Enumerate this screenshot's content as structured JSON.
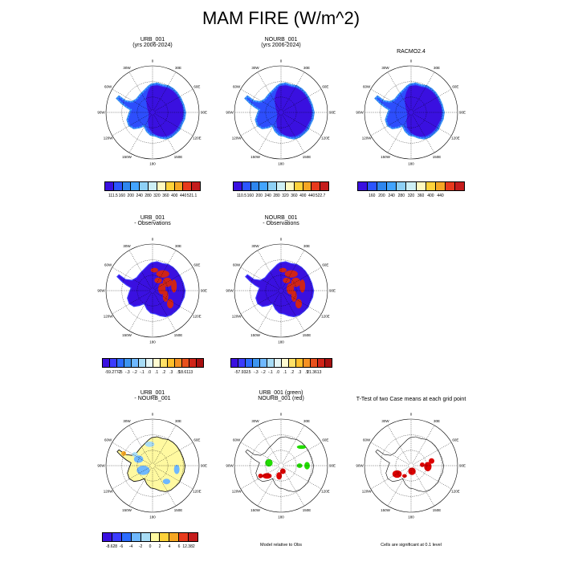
{
  "title": "MAM FIRE (W/m^2)",
  "lon_labels": [
    "0",
    "30E",
    "60E",
    "90E",
    "120E",
    "150E",
    "180",
    "150W",
    "120W",
    "90W",
    "60W",
    "30W"
  ],
  "panels": [
    {
      "id": "urb",
      "title_lines": [
        "URB_001",
        "(yrs 2006-2024)"
      ],
      "kind": "abs",
      "colorbar": {
        "colors": [
          "#3a10e0",
          "#2c55ff",
          "#2f86ee",
          "#43a4ff",
          "#8ed0f5",
          "#cdeff5",
          "#fff9c0",
          "#ffd23a",
          "#f5a623",
          "#e83a1c",
          "#c51c1c"
        ],
        "labels": [
          "111.5",
          "160",
          "200",
          "240",
          "280",
          "320",
          "360",
          "400",
          "440",
          "521.1"
        ]
      }
    },
    {
      "id": "nourb",
      "title_lines": [
        "NOURB_001",
        "(yrs 2006-2024)"
      ],
      "kind": "abs",
      "colorbar": {
        "colors": [
          "#3a10e0",
          "#2c55ff",
          "#2f86ee",
          "#43a4ff",
          "#8ed0f5",
          "#cdeff5",
          "#fff9c0",
          "#ffd23a",
          "#f5a623",
          "#e83a1c",
          "#c51c1c"
        ],
        "labels": [
          "110.5",
          "160",
          "200",
          "240",
          "280",
          "320",
          "360",
          "400",
          "440",
          "522.7"
        ]
      }
    },
    {
      "id": "racmo",
      "title_lines": [
        "RACMO2.4"
      ],
      "kind": "abs",
      "colorbar": {
        "colors": [
          "#3a10e0",
          "#2c55ff",
          "#2f86ee",
          "#43a4ff",
          "#8ed0f5",
          "#cdeff5",
          "#fff9c0",
          "#ffd23a",
          "#f5a623",
          "#e83a1c",
          "#c51c1c"
        ],
        "labels": [
          "160",
          "200",
          "240",
          "280",
          "320",
          "360",
          "400",
          "440"
        ]
      }
    },
    {
      "id": "urb-obs",
      "title_lines": [
        "URB_001",
        "- Observations"
      ],
      "kind": "diff",
      "colorbar": {
        "colors": [
          "#3a10e0",
          "#3b3bff",
          "#2c6cff",
          "#3d95f0",
          "#6fb8ff",
          "#a8dcf5",
          "#e4f5f5",
          "#fffbd0",
          "#ffe066",
          "#ffbf2a",
          "#f59123",
          "#e8501c",
          "#d02418",
          "#a81010"
        ],
        "labels": [
          "-59.2772",
          "-.5",
          "-.3",
          "-.2",
          "-.1",
          ".0",
          ".1",
          ".2",
          ".3",
          ".5",
          "18.6113"
        ]
      }
    },
    {
      "id": "nourb-obs",
      "title_lines": [
        "NOURB_001",
        "- Observations"
      ],
      "kind": "diff",
      "colorbar": {
        "colors": [
          "#3a10e0",
          "#3b3bff",
          "#2c6cff",
          "#3d95f0",
          "#6fb8ff",
          "#a8dcf5",
          "#e4f5f5",
          "#fffbd0",
          "#ffe066",
          "#ffbf2a",
          "#f59123",
          "#e8501c",
          "#d02418",
          "#a81010"
        ],
        "labels": [
          "-57.932",
          "-.5",
          "-.3",
          "-.2",
          "-.1",
          ".0",
          ".1",
          ".2",
          ".3",
          ".5",
          "21.3613"
        ]
      }
    },
    {
      "id": "urb-nourb",
      "title_lines": [
        "URB_001",
        "- NOURB_001"
      ],
      "kind": "modeldiff",
      "colorbar": {
        "colors": [
          "#3a10e0",
          "#3b3bff",
          "#2c6cff",
          "#6fb8ff",
          "#a8dcf5",
          "#fff9a0",
          "#ffd23a",
          "#f5a623",
          "#e83a1c",
          "#c51c1c"
        ],
        "labels": [
          "-8.628",
          "-6",
          "-4",
          "-2",
          "0",
          "2",
          "4",
          "6",
          "12.382"
        ]
      }
    },
    {
      "id": "model-rel",
      "title_lines": [
        "URB_001 (green)",
        "NOURB_001 (red)"
      ],
      "kind": "relobs",
      "footnote": "Model relative to Obs"
    },
    {
      "id": "ttest",
      "title_lines": [
        "T-Test of two Case means at each grid point"
      ],
      "kind": "ttest",
      "footnote": "Cells are significant at 0.1 level"
    }
  ],
  "colors": {
    "green_marker": "#22dd00",
    "red_marker": "#dd0000",
    "coast": "#000000"
  }
}
